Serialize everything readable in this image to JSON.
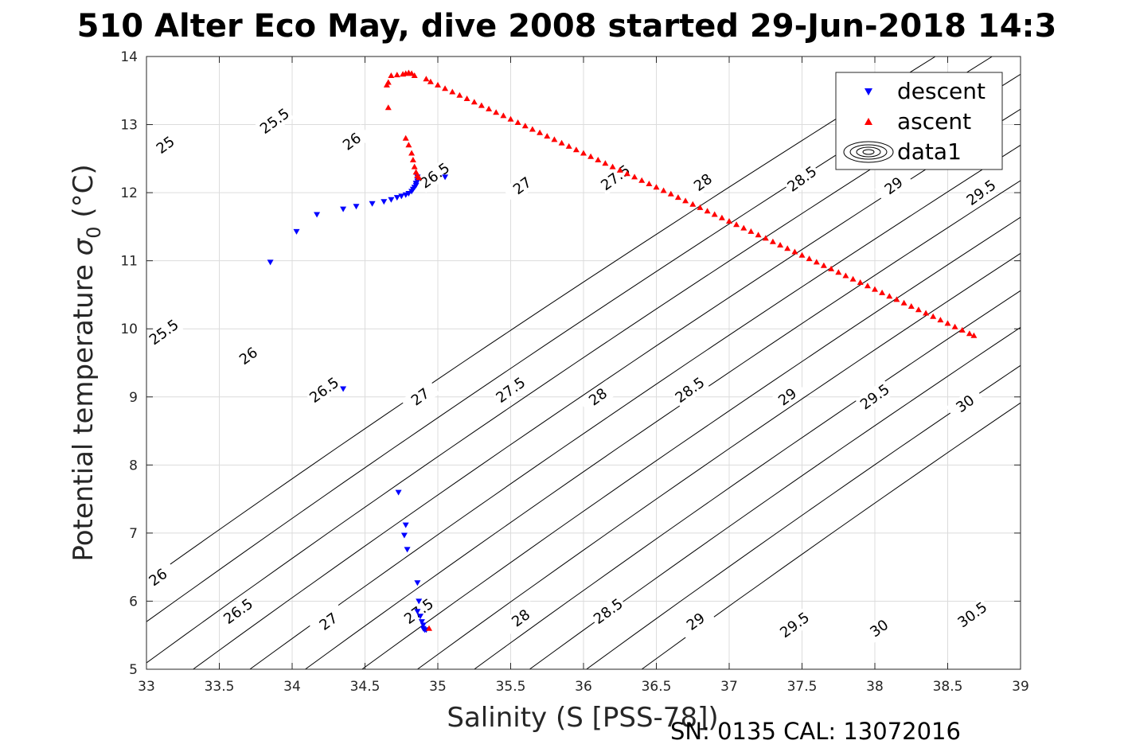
{
  "chart_data": {
    "type": "scatter",
    "title": "510 Alter Eco May, dive 2008 started 29-Jun-2018 14:3",
    "xlabel": "Salinity (S [PSS-78])",
    "ylabel_main": "Potential temperature ",
    "ylabel_symbol": "σ",
    "ylabel_sub": "0",
    "ylabel_unit": " (°C)",
    "xlim": [
      33,
      39
    ],
    "ylim": [
      5,
      14
    ],
    "x_ticks": [
      "33",
      "33.5",
      "34",
      "34.5",
      "35",
      "35.5",
      "36",
      "36.5",
      "37",
      "37.5",
      "38",
      "38.5",
      "39"
    ],
    "y_ticks": [
      "5",
      "6",
      "7",
      "8",
      "9",
      "10",
      "11",
      "12",
      "13",
      "14"
    ],
    "grid": true,
    "legend_position": "top-right",
    "legend": [
      "descent",
      "ascent",
      "data1"
    ],
    "footer": "SN: 0135  CAL: 13072016",
    "colors": {
      "descent": "#0000ff",
      "ascent": "#ff0000",
      "contour": "#000000",
      "grid": "#dcdcdc"
    },
    "series": [
      {
        "name": "descent",
        "marker": "triangle-down",
        "x": [
          33.85,
          34.03,
          34.17,
          34.35,
          34.44,
          34.55,
          34.63,
          34.68,
          34.72,
          34.75,
          34.78,
          34.8,
          34.82,
          34.83,
          34.84,
          34.85,
          34.85,
          34.86,
          34.86,
          34.86,
          35.05,
          34.35,
          34.73,
          34.78,
          34.77,
          34.79,
          34.86,
          34.87,
          34.86,
          34.88,
          34.89,
          34.9,
          34.9,
          34.91,
          34.92
        ],
        "y": [
          10.98,
          11.43,
          11.68,
          11.76,
          11.8,
          11.84,
          11.87,
          11.9,
          11.93,
          11.95,
          11.97,
          11.99,
          12.02,
          12.05,
          12.08,
          12.11,
          12.14,
          12.17,
          12.2,
          12.23,
          12.23,
          9.12,
          7.6,
          7.12,
          6.97,
          6.76,
          6.27,
          6.0,
          5.85,
          5.78,
          5.7,
          5.65,
          5.6,
          5.58,
          5.58
        ]
      },
      {
        "name": "ascent",
        "marker": "triangle-up",
        "x": [
          34.65,
          34.66,
          34.68,
          34.72,
          34.76,
          34.78,
          34.8,
          34.82,
          34.84,
          34.66,
          34.78,
          34.8,
          34.82,
          34.83,
          34.84,
          34.85,
          34.86,
          34.87,
          34.94,
          34.92,
          34.95,
          35.0,
          35.05,
          35.1,
          35.15,
          35.2,
          35.25,
          35.3,
          35.35,
          35.4,
          35.45,
          35.5,
          35.55,
          35.6,
          35.65,
          35.7,
          35.75,
          35.8,
          35.85,
          35.9,
          35.95,
          36.0,
          36.05,
          36.1,
          36.15,
          36.2,
          36.25,
          36.3,
          36.35,
          36.4,
          36.45,
          36.5,
          36.55,
          36.6,
          36.65,
          36.7,
          36.75,
          36.8,
          36.85,
          36.9,
          36.95,
          37.0,
          37.05,
          37.1,
          37.15,
          37.2,
          37.25,
          37.3,
          37.35,
          37.4,
          37.45,
          37.5,
          37.55,
          37.6,
          37.65,
          37.7,
          37.75,
          37.8,
          37.85,
          37.9,
          37.95,
          38.0,
          38.05,
          38.1,
          38.15,
          38.2,
          38.25,
          38.3,
          38.35,
          38.4,
          38.45,
          38.5,
          38.55,
          38.6,
          38.65,
          38.68
        ],
        "y": [
          13.58,
          13.62,
          13.72,
          13.73,
          13.74,
          13.75,
          13.76,
          13.75,
          13.72,
          13.25,
          12.8,
          12.7,
          12.58,
          12.48,
          12.38,
          12.3,
          12.25,
          12.22,
          5.6,
          13.67,
          13.63,
          13.58,
          13.53,
          13.48,
          13.43,
          13.38,
          13.33,
          13.28,
          13.23,
          13.18,
          13.13,
          13.08,
          13.03,
          12.98,
          12.93,
          12.88,
          12.83,
          12.78,
          12.73,
          12.68,
          12.63,
          12.58,
          12.53,
          12.48,
          12.43,
          12.38,
          12.33,
          12.28,
          12.23,
          12.18,
          12.13,
          12.08,
          12.03,
          11.98,
          11.93,
          11.88,
          11.83,
          11.78,
          11.73,
          11.68,
          11.63,
          11.58,
          11.53,
          11.48,
          11.43,
          11.38,
          11.33,
          11.28,
          11.23,
          11.18,
          11.13,
          11.08,
          11.03,
          10.98,
          10.93,
          10.88,
          10.83,
          10.78,
          10.73,
          10.68,
          10.63,
          10.58,
          10.53,
          10.48,
          10.43,
          10.38,
          10.33,
          10.28,
          10.23,
          10.18,
          10.13,
          10.08,
          10.03,
          9.98,
          9.93,
          9.9
        ]
      }
    ],
    "contours": [
      {
        "level": 25,
        "x_at_y5": 32.16,
        "labels": [
          {
            "text": "25",
            "x": 33.13,
            "y": 12.7
          }
        ]
      },
      {
        "level": 25.5,
        "x_at_y5": 32.55,
        "labels": [
          {
            "text": "25.5",
            "x": 33.12,
            "y": 9.95
          },
          {
            "text": "25.5",
            "x": 33.88,
            "y": 13.05
          }
        ]
      },
      {
        "level": 26,
        "x_at_y5": 32.94,
        "labels": [
          {
            "text": "26",
            "x": 33.08,
            "y": 6.35
          },
          {
            "text": "26",
            "x": 33.7,
            "y": 9.6
          },
          {
            "text": "26",
            "x": 34.41,
            "y": 12.75
          }
        ]
      },
      {
        "level": 26.5,
        "x_at_y5": 33.32,
        "labels": [
          {
            "text": "26.5",
            "x": 33.63,
            "y": 5.85
          },
          {
            "text": "26.5",
            "x": 34.22,
            "y": 9.1
          },
          {
            "text": "26.5",
            "x": 34.98,
            "y": 12.25
          }
        ]
      },
      {
        "level": 27,
        "x_at_y5": 33.71,
        "labels": [
          {
            "text": "27",
            "x": 34.25,
            "y": 5.7
          },
          {
            "text": "27",
            "x": 34.88,
            "y": 9.0
          },
          {
            "text": "27",
            "x": 35.58,
            "y": 12.1
          }
        ]
      },
      {
        "level": 27.5,
        "x_at_y5": 34.09,
        "labels": [
          {
            "text": "27.5",
            "x": 34.87,
            "y": 5.85
          },
          {
            "text": "27.5",
            "x": 35.5,
            "y": 9.1
          },
          {
            "text": "27.5",
            "x": 36.22,
            "y": 12.22
          }
        ]
      },
      {
        "level": 28,
        "x_at_y5": 34.48,
        "labels": [
          {
            "text": "28",
            "x": 35.57,
            "y": 5.75
          },
          {
            "text": "28",
            "x": 36.1,
            "y": 9.0
          },
          {
            "text": "28",
            "x": 36.82,
            "y": 12.15
          }
        ]
      },
      {
        "level": 28.5,
        "x_at_y5": 34.86,
        "labels": [
          {
            "text": "28.5",
            "x": 36.17,
            "y": 5.85
          },
          {
            "text": "28.5",
            "x": 36.73,
            "y": 9.1
          },
          {
            "text": "28.5",
            "x": 37.5,
            "y": 12.2
          }
        ]
      },
      {
        "level": 29,
        "x_at_y5": 35.25,
        "labels": [
          {
            "text": "29",
            "x": 36.77,
            "y": 5.7
          },
          {
            "text": "29",
            "x": 37.4,
            "y": 9.0
          },
          {
            "text": "29",
            "x": 38.13,
            "y": 12.1
          }
        ]
      },
      {
        "level": 29.5,
        "x_at_y5": 35.63,
        "labels": [
          {
            "text": "29.5",
            "x": 37.45,
            "y": 5.65
          },
          {
            "text": "29.5",
            "x": 38.0,
            "y": 9.0
          },
          {
            "text": "29.5",
            "x": 38.73,
            "y": 12.0
          }
        ]
      },
      {
        "level": 30,
        "x_at_y5": 36.02,
        "labels": [
          {
            "text": "30",
            "x": 38.03,
            "y": 5.6
          },
          {
            "text": "30",
            "x": 38.62,
            "y": 8.9
          }
        ]
      },
      {
        "level": 30.5,
        "x_at_y5": 36.4,
        "labels": [
          {
            "text": "30.5",
            "x": 38.67,
            "y": 5.8
          }
        ]
      }
    ]
  }
}
